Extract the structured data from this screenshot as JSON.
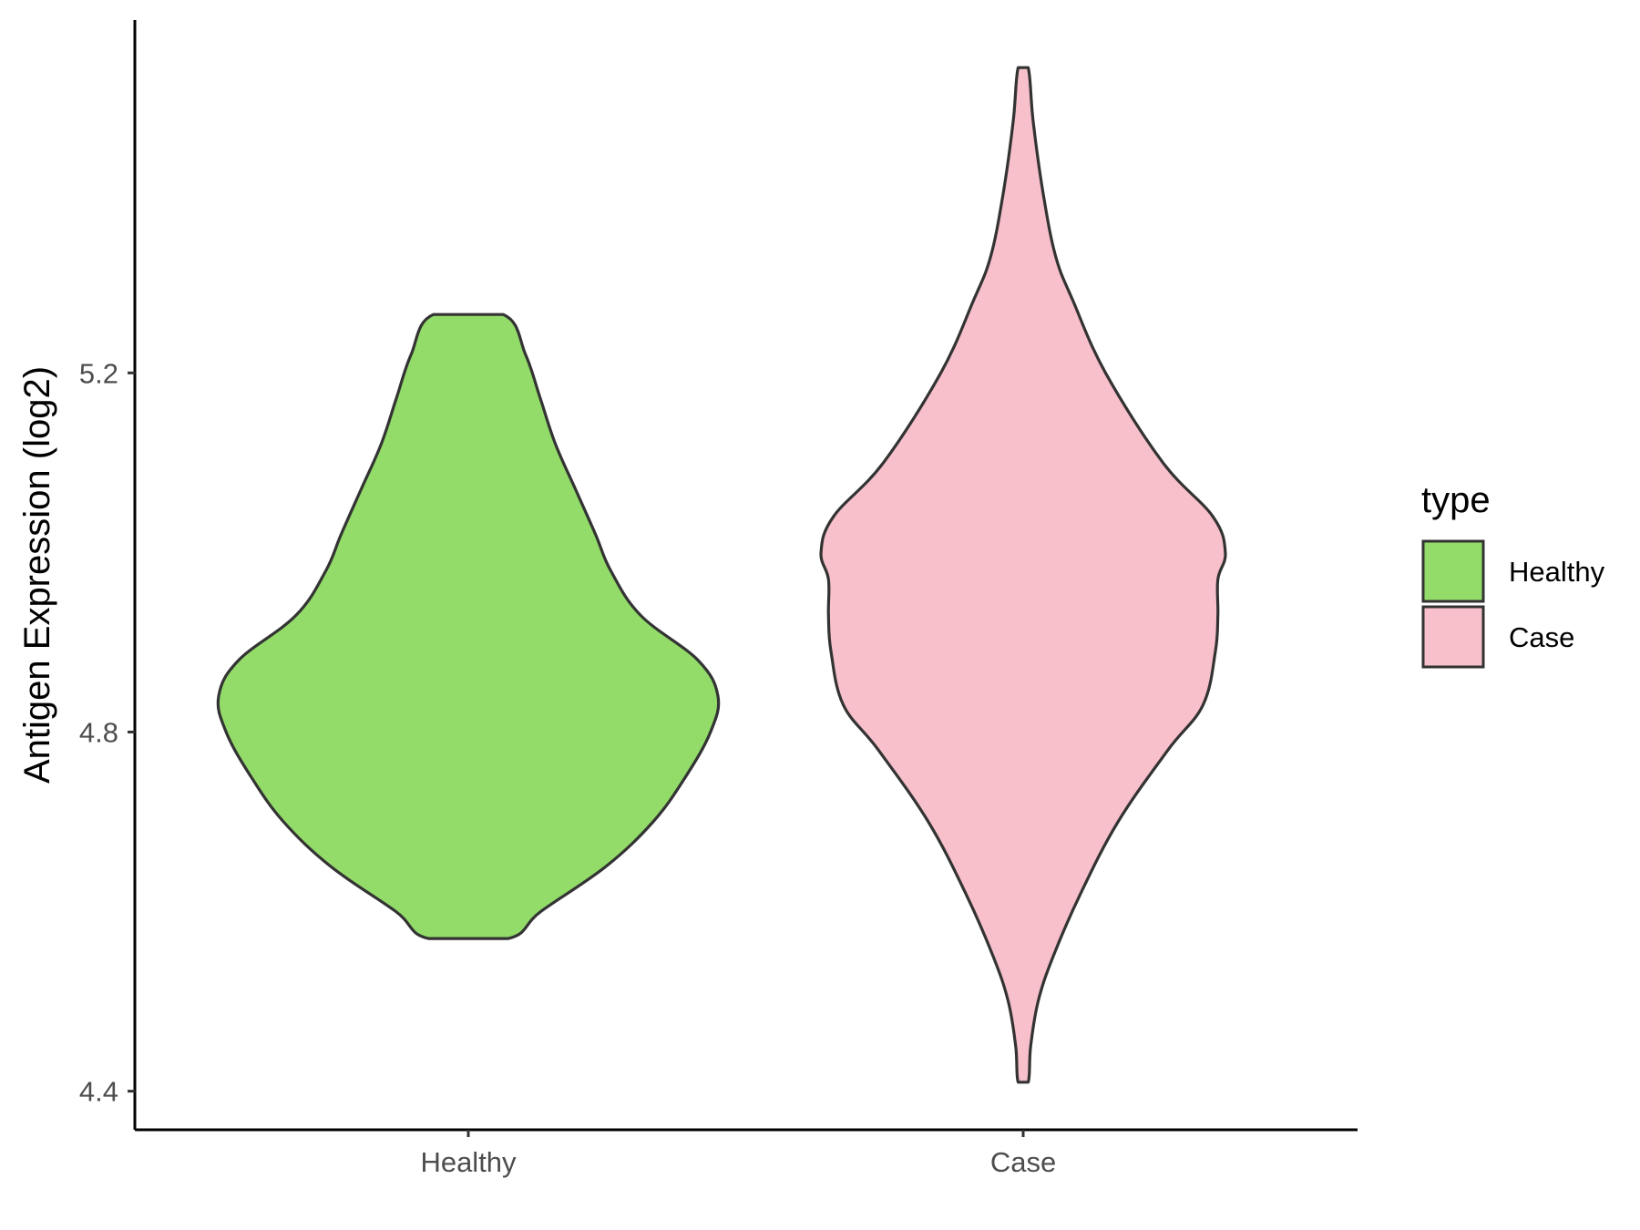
{
  "chart_data": {
    "type": "violin",
    "ylabel": "Antigen Expression (log2)",
    "xlabel": "",
    "ylim": [
      4.357,
      5.593
    ],
    "y_ticks": [
      "4.4",
      "4.8",
      "5.2"
    ],
    "grid": false,
    "legend_position": "right",
    "legend_title": "type",
    "categories": [
      "Healthy",
      "Case"
    ],
    "series": [
      {
        "name": "Healthy",
        "color": "#93dc6a",
        "range": [
          4.57,
          5.265
        ],
        "density": [
          [
            4.57,
            0.16
          ],
          [
            4.6,
            0.29
          ],
          [
            4.65,
            0.55
          ],
          [
            4.7,
            0.74
          ],
          [
            4.75,
            0.87
          ],
          [
            4.8,
            0.97
          ],
          [
            4.84,
            1.0
          ],
          [
            4.88,
            0.92
          ],
          [
            4.93,
            0.69
          ],
          [
            4.98,
            0.57
          ],
          [
            5.02,
            0.51
          ],
          [
            5.07,
            0.43
          ],
          [
            5.12,
            0.35
          ],
          [
            5.17,
            0.29
          ],
          [
            5.22,
            0.23
          ],
          [
            5.265,
            0.14
          ]
        ]
      },
      {
        "name": "Case",
        "color": "#f7c0cb",
        "range": [
          4.41,
          5.54
        ],
        "density": [
          [
            4.41,
            0.02
          ],
          [
            4.45,
            0.03
          ],
          [
            4.5,
            0.06
          ],
          [
            4.55,
            0.12
          ],
          [
            4.62,
            0.23
          ],
          [
            4.7,
            0.38
          ],
          [
            4.78,
            0.58
          ],
          [
            4.83,
            0.72
          ],
          [
            4.89,
            0.77
          ],
          [
            4.93,
            0.78
          ],
          [
            4.97,
            0.78
          ],
          [
            5.0,
            0.81
          ],
          [
            5.04,
            0.76
          ],
          [
            5.1,
            0.56
          ],
          [
            5.2,
            0.33
          ],
          [
            5.28,
            0.2
          ],
          [
            5.33,
            0.13
          ],
          [
            5.4,
            0.08
          ],
          [
            5.48,
            0.04
          ],
          [
            5.54,
            0.02
          ]
        ]
      }
    ]
  }
}
